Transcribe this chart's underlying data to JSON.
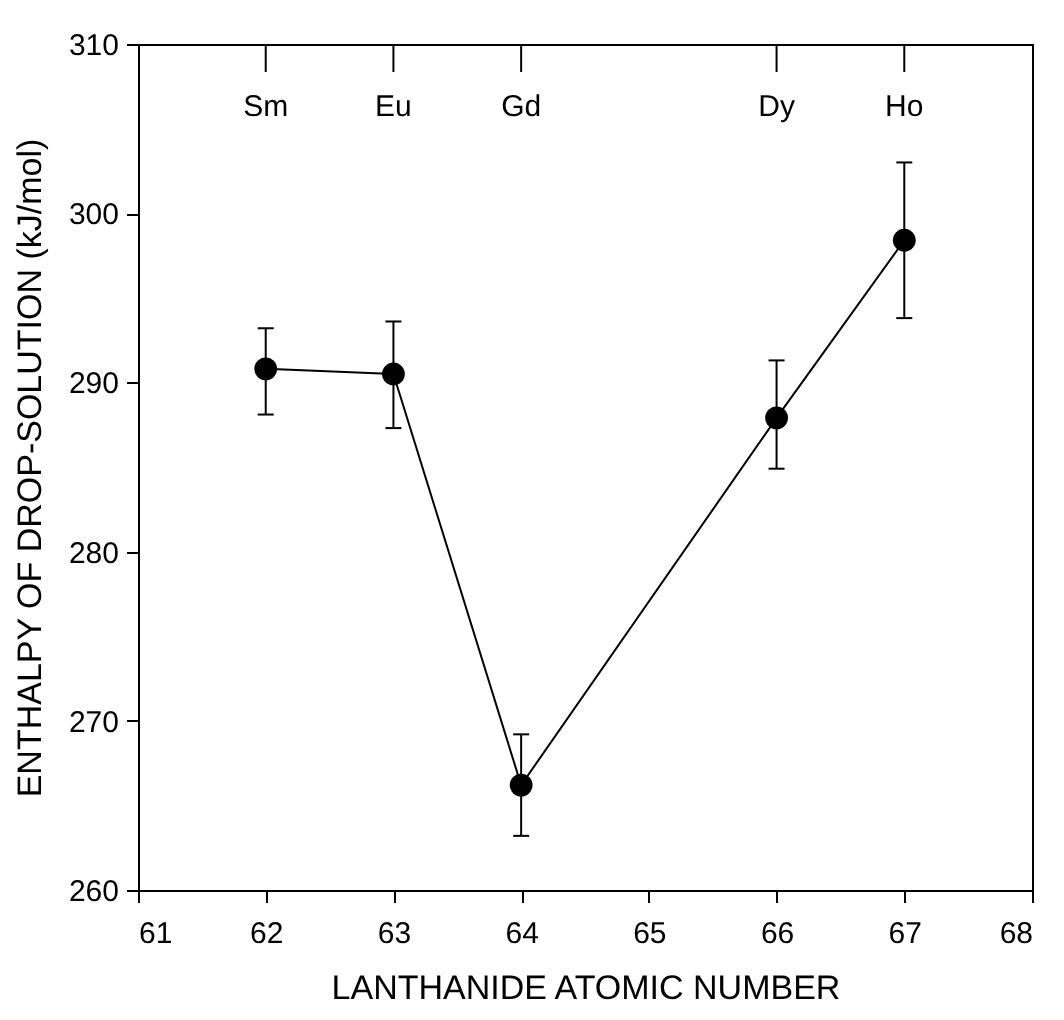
{
  "chart_data": {
    "type": "line",
    "xlabel": "LANTHANIDE ATOMIC NUMBER",
    "ylabel": "ENTHALPY OF DROP-SOLUTION (kJ/mol)",
    "x": [
      62,
      63,
      64,
      66,
      67
    ],
    "series": [
      {
        "color": "#000000",
        "values": [
          290.8,
          290.5,
          266.2,
          287.9,
          298.4
        ],
        "errors": [
          [
            288.1,
            293.2
          ],
          [
            287.3,
            293.6
          ],
          [
            263.2,
            269.2
          ],
          [
            284.9,
            291.3
          ],
          [
            293.8,
            303.0
          ]
        ]
      }
    ],
    "xlim": [
      61,
      68
    ],
    "xticks": [
      61,
      62,
      63,
      64,
      65,
      66,
      67,
      68
    ],
    "ylim": [
      260,
      310
    ],
    "yticks": [
      260,
      270,
      280,
      290,
      300,
      310
    ],
    "annotations": [
      {
        "text": "Sm",
        "x": 62
      },
      {
        "text": "Eu",
        "x": 63
      },
      {
        "text": "Gd",
        "x": 64
      },
      {
        "text": "Dy",
        "x": 66
      },
      {
        "text": "Ho",
        "x": 67
      }
    ],
    "marker": "circle",
    "line_style": "solid",
    "grid": false,
    "legend": false
  }
}
